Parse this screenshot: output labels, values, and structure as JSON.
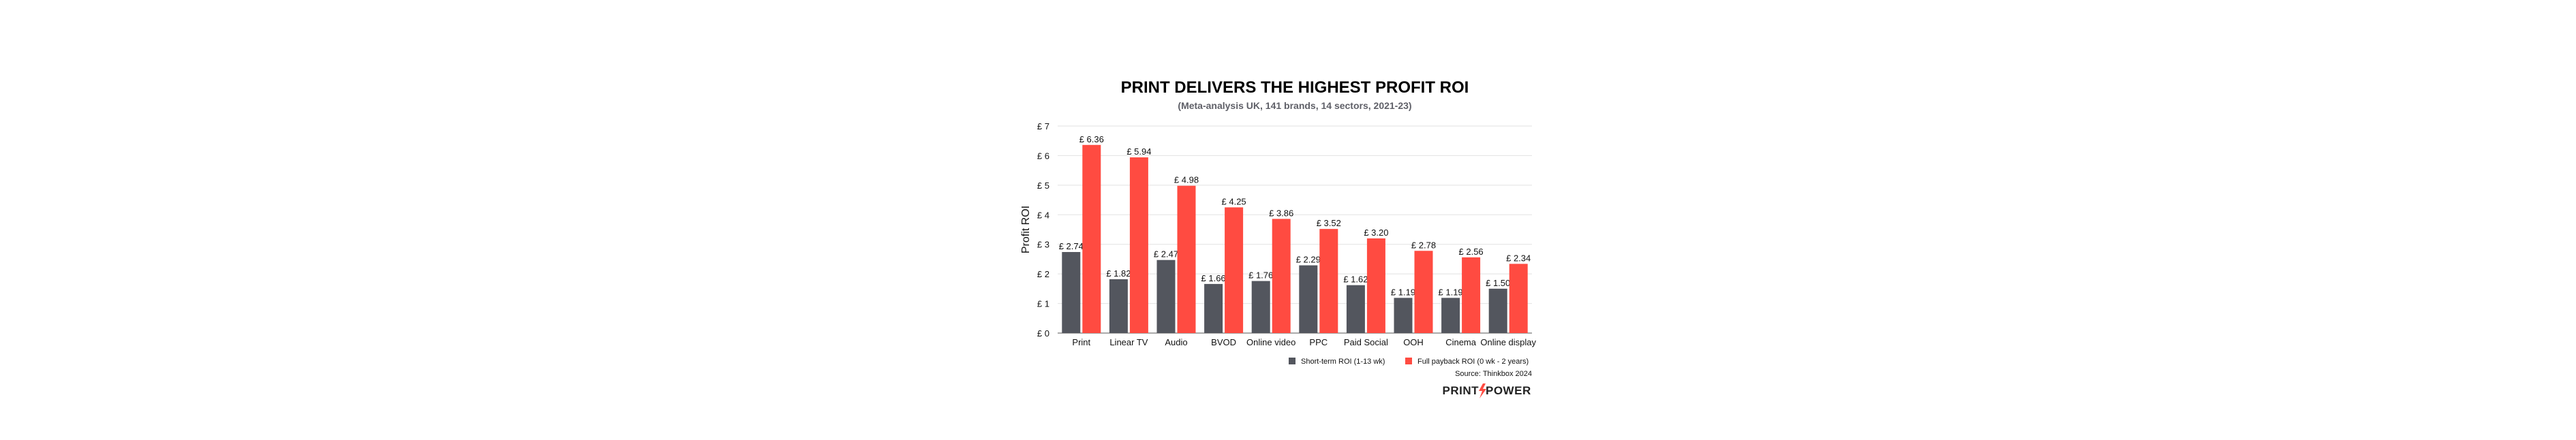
{
  "chart_data": {
    "type": "bar",
    "title": "PRINT DELIVERS THE HIGHEST PROFIT ROI",
    "subtitle": "(Meta-analysis UK, 141 brands, 14 sectors, 2021-23)",
    "xlabel": "",
    "ylabel": "Profit ROI",
    "ylim": [
      0,
      7
    ],
    "yticks": [
      0,
      1,
      2,
      3,
      4,
      5,
      6,
      7
    ],
    "tick_prefix": "£ ",
    "grid": true,
    "legend_position": "bottom-right",
    "categories": [
      "Print",
      "Linear TV",
      "Audio",
      "BVOD",
      "Online video",
      "PPC",
      "Paid Social",
      "OOH",
      "Cinema",
      "Online display"
    ],
    "series": [
      {
        "name": "Short-term ROI (1-13 wk)",
        "color": "#53565e",
        "values": [
          2.74,
          1.82,
          2.47,
          1.66,
          1.76,
          2.29,
          1.62,
          1.19,
          1.19,
          1.5
        ]
      },
      {
        "name": "Full payback ROI (0 wk - 2 years)",
        "color": "#ff4b41",
        "values": [
          6.36,
          5.94,
          4.98,
          4.25,
          3.86,
          3.52,
          3.2,
          2.78,
          2.56,
          2.34
        ]
      }
    ],
    "source": "Source: Thinkbox 2024"
  },
  "logo": {
    "text_left": "PRINT",
    "text_right": "POWER",
    "accent": "#ff4b41"
  }
}
